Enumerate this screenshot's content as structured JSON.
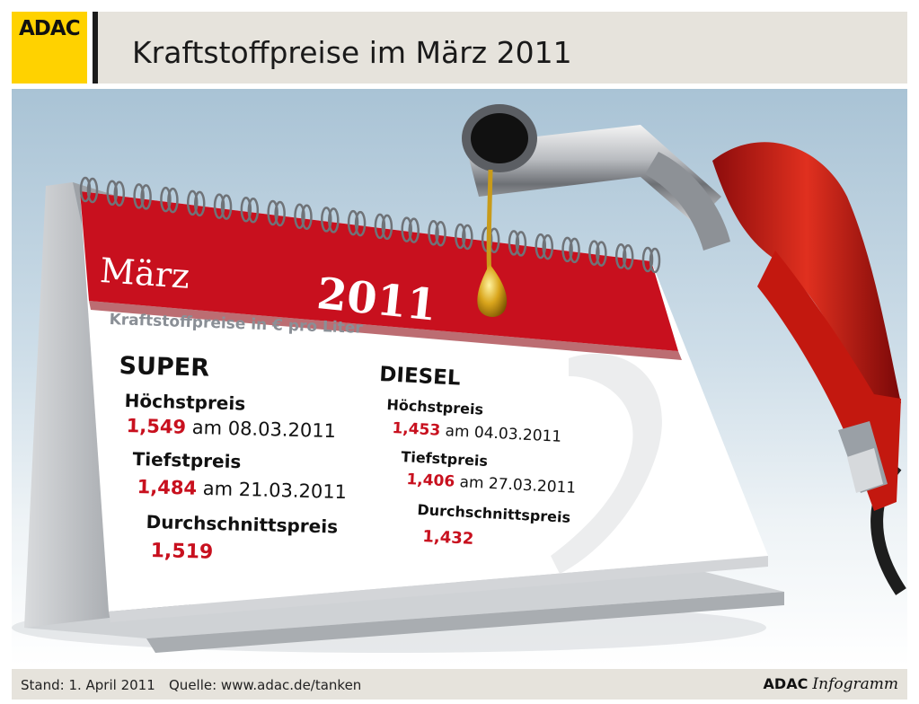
{
  "header": {
    "logo_text": "ADAC",
    "title": "Kraftstoffpreise im März 2011",
    "logo_color": "#ffd200"
  },
  "calendar": {
    "month": "März",
    "year": "2011",
    "unit_label": "Kraftstoffpreise in € pro Liter",
    "accent_color": "#c8101e",
    "super": {
      "heading": "SUPER",
      "max_label": "Höchstpreis",
      "max_value": "1,549",
      "max_date": "am 08.03.2011",
      "min_label": "Tiefstpreis",
      "min_value": "1,484",
      "min_date": "am 21.03.2011",
      "avg_label": "Durchschnittspreis",
      "avg_value": "1,519"
    },
    "diesel": {
      "heading": "DIESEL",
      "max_label": "Höchstpreis",
      "max_value": "1,453",
      "max_date": "am 04.03.2011",
      "min_label": "Tiefstpreis",
      "min_value": "1,406",
      "min_date": "am 27.03.2011",
      "avg_label": "Durchschnittspreis",
      "avg_value": "1,432"
    }
  },
  "footer": {
    "stand": "Stand: 1. April 2011",
    "quelle": "Quelle: www.adac.de/tanken",
    "brand_bold": "ADAC",
    "brand_italic": "Infogramm"
  },
  "icons": [
    "fuel-nozzle-icon",
    "oil-drop-icon",
    "calendar-spiral-icon"
  ]
}
